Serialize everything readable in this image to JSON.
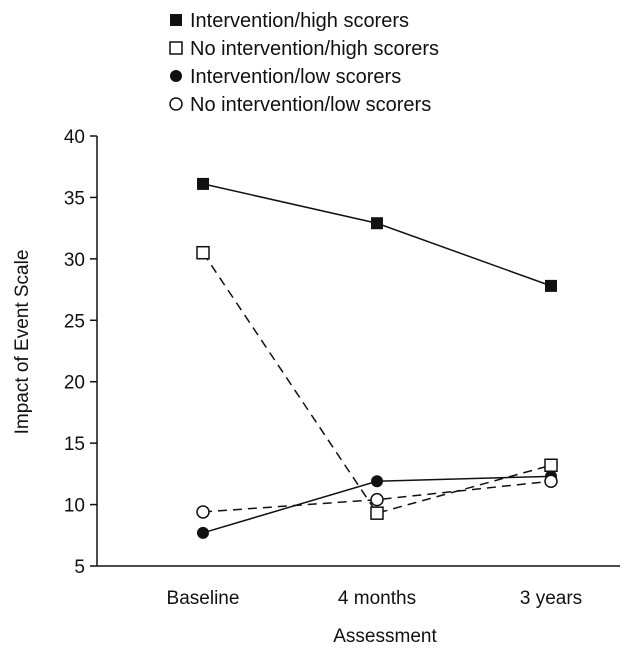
{
  "chart_data": {
    "type": "line",
    "title": "",
    "xlabel": "Assessment",
    "ylabel": "Impact of Event Scale",
    "categories": [
      "Baseline",
      "4 months",
      "3 years"
    ],
    "ylim": [
      5,
      40
    ],
    "yticks": [
      "5",
      "10",
      "15",
      "20",
      "25",
      "30",
      "35",
      "40"
    ],
    "grid": false,
    "legend_position": "top",
    "series": [
      {
        "name": "Intervention/high scorers",
        "values": [
          36.1,
          32.9,
          27.8
        ],
        "marker": "filled-square",
        "line": "solid",
        "color": "#111111"
      },
      {
        "name": "No intervention/high scorers",
        "values": [
          30.5,
          9.3,
          13.2
        ],
        "marker": "open-square",
        "line": "dashed",
        "color": "#111111"
      },
      {
        "name": "Intervention/low scorers",
        "values": [
          7.7,
          11.9,
          12.3
        ],
        "marker": "filled-circle",
        "line": "solid",
        "color": "#111111"
      },
      {
        "name": "No intervention/low scorers",
        "values": [
          9.4,
          10.4,
          11.9
        ],
        "marker": "open-circle",
        "line": "dashed",
        "color": "#111111"
      }
    ]
  }
}
